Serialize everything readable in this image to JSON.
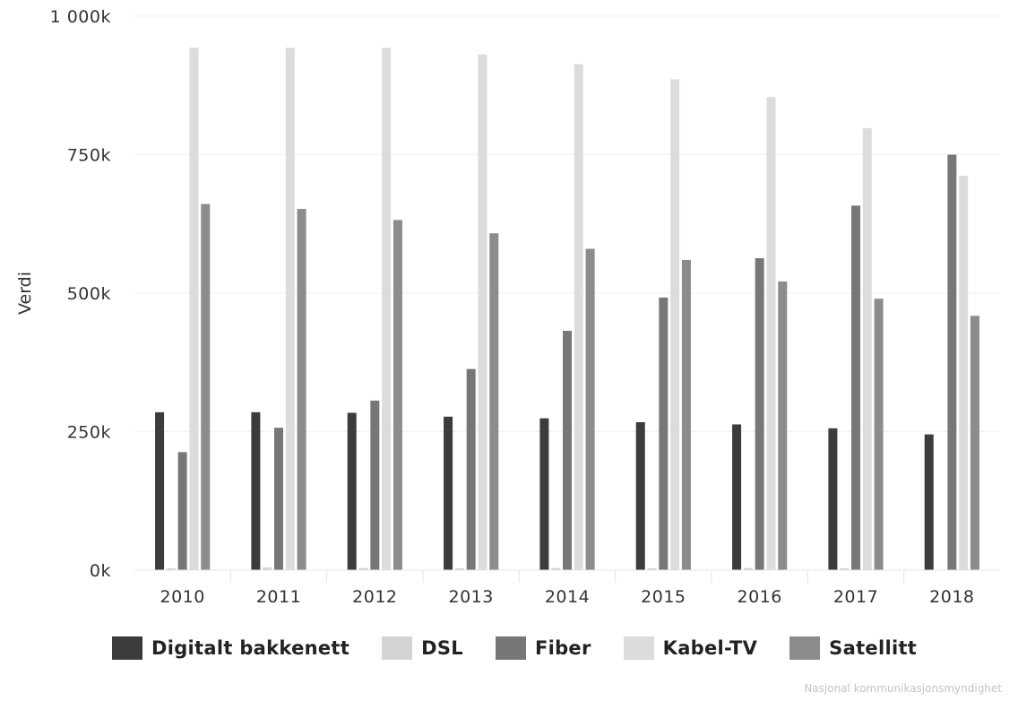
{
  "chart_data": {
    "type": "bar",
    "categories": [
      "2010",
      "2011",
      "2012",
      "2013",
      "2014",
      "2015",
      "2016",
      "2017",
      "2018"
    ],
    "ylabel": "Verdi",
    "xlabel": "",
    "ylim": [
      0,
      1000000
    ],
    "yticks": [
      {
        "value": 0,
        "label": "0k"
      },
      {
        "value": 250000,
        "label": "250k"
      },
      {
        "value": 500000,
        "label": "500k"
      },
      {
        "value": 750000,
        "label": "750k"
      },
      {
        "value": 1000000,
        "label": "1 000k"
      }
    ],
    "grid": true,
    "legend_position": "bottom",
    "series": [
      {
        "name": "Digitalt bakkenett",
        "color": "#3c3c3c",
        "values": [
          285000,
          285000,
          284000,
          277000,
          274000,
          267000,
          263000,
          256000,
          245000
        ]
      },
      {
        "name": "DSL",
        "color": "#d4d4d4",
        "values": [
          1000,
          5000,
          4000,
          3000,
          4000,
          2000,
          4000,
          1000,
          0
        ]
      },
      {
        "name": "Fiber",
        "color": "#777777",
        "values": [
          213000,
          257000,
          306000,
          363000,
          432000,
          492000,
          563000,
          658000,
          750000
        ]
      },
      {
        "name": "Kabel-TV",
        "color": "#dcdcdc",
        "values": [
          943000,
          943000,
          943000,
          931000,
          913000,
          886000,
          854000,
          798000,
          712000
        ]
      },
      {
        "name": "Satellitt",
        "color": "#8c8c8c",
        "values": [
          661000,
          652000,
          632000,
          608000,
          580000,
          560000,
          521000,
          490000,
          459000
        ]
      }
    ],
    "credit": "Nasjonal kommunikasjonsmyndighet"
  }
}
